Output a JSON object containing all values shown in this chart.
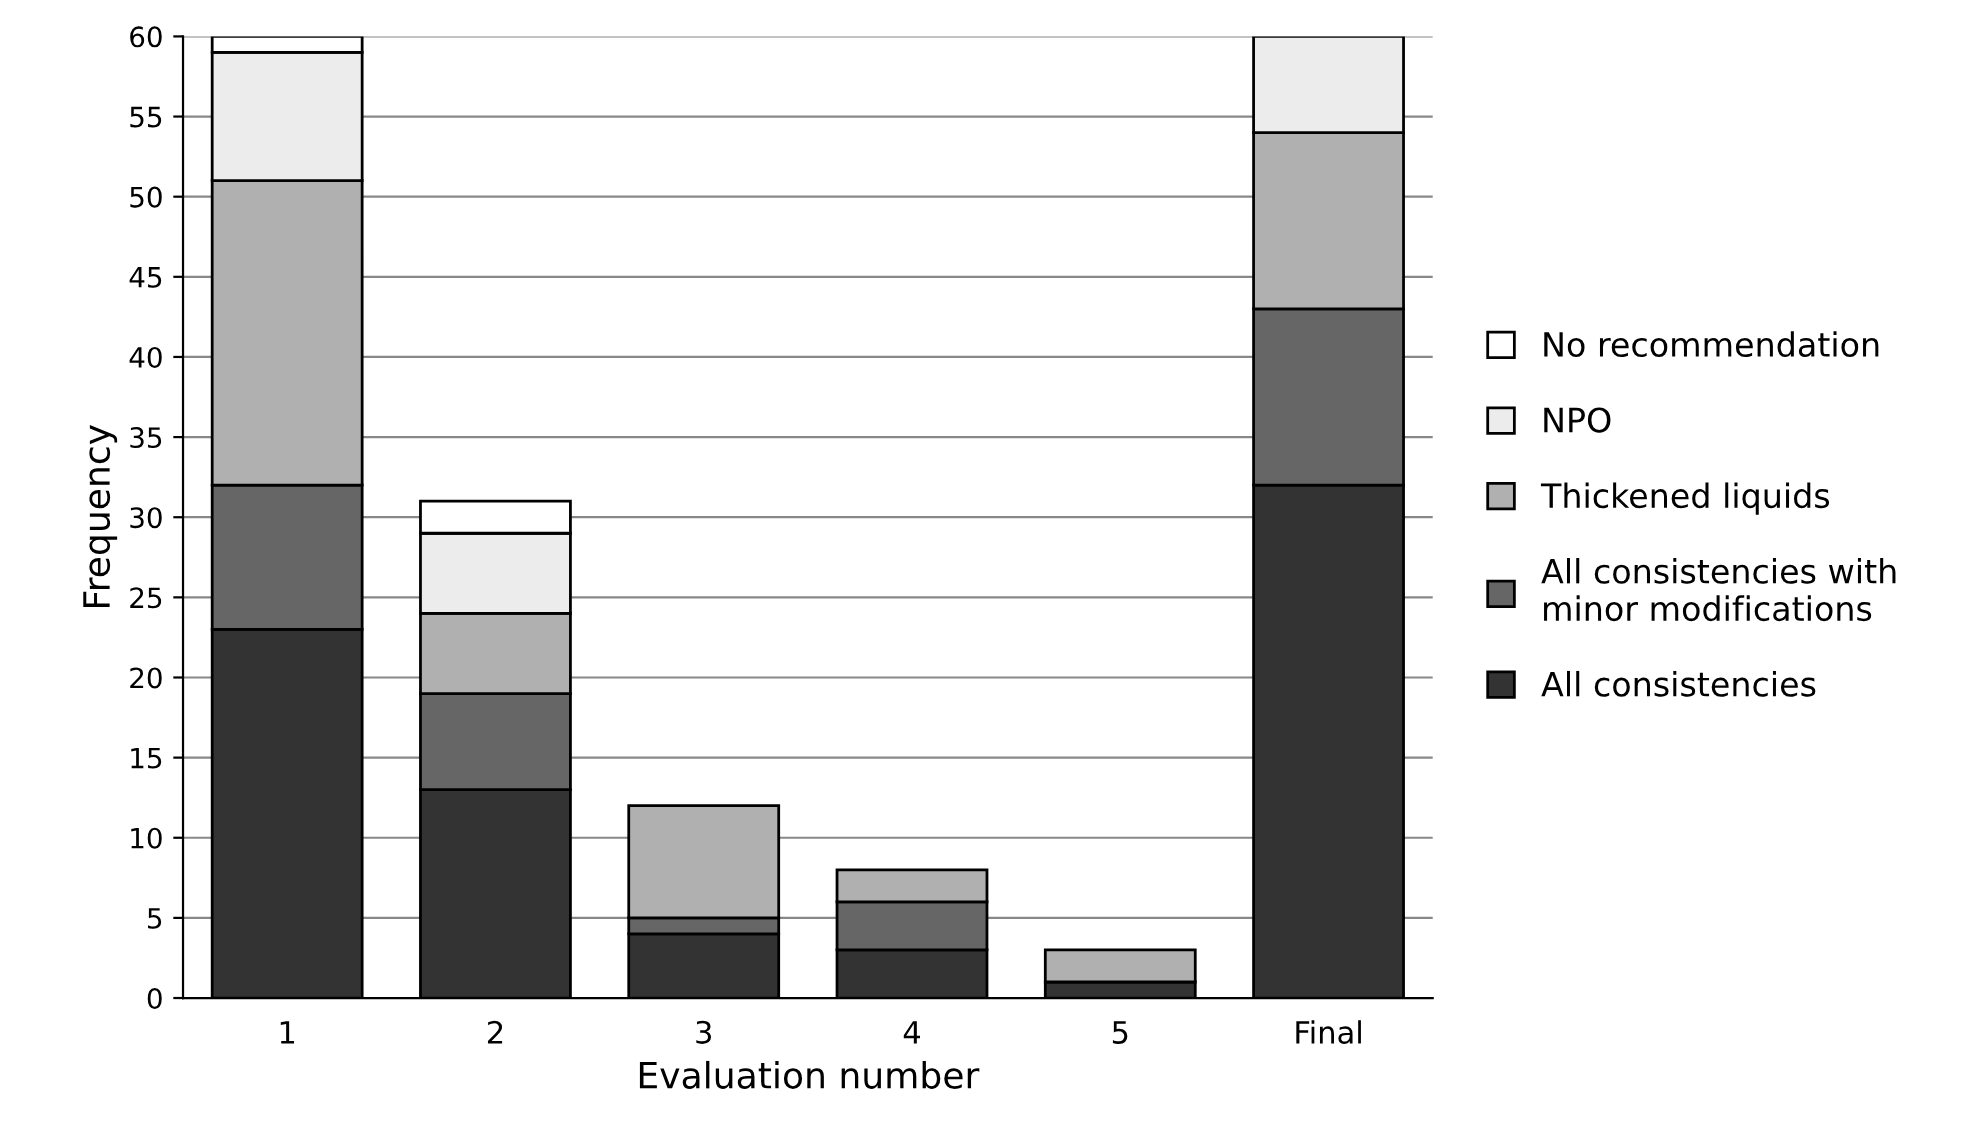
{
  "chart_data": {
    "type": "bar",
    "stacked": true,
    "xlabel": "Evaluation number",
    "ylabel": "Frequency",
    "categories": [
      "1",
      "2",
      "3",
      "4",
      "5",
      "Final"
    ],
    "series": [
      {
        "name": "All consistencies",
        "color": "#333333",
        "values": [
          23,
          13,
          4,
          3,
          1,
          32
        ]
      },
      {
        "name": "All consistencies with\nminor modifications",
        "color": "#666666",
        "values": [
          9,
          6,
          1,
          3,
          null,
          11
        ]
      },
      {
        "name": "Thickened liquids",
        "color": "#b0b0b0",
        "values": [
          19,
          5,
          7,
          2,
          2,
          11
        ]
      },
      {
        "name": "NPO",
        "color": "#ececec",
        "values": [
          8,
          5,
          null,
          null,
          null,
          6
        ]
      },
      {
        "name": "No recommendation",
        "color": "#ffffff",
        "values": [
          1,
          2,
          null,
          null,
          null,
          null
        ]
      }
    ],
    "ylim": [
      0,
      60
    ],
    "yticks": [
      0,
      5,
      10,
      15,
      20,
      25,
      30,
      35,
      40,
      45,
      50,
      55,
      60
    ],
    "grid": "y",
    "legend": "right"
  }
}
